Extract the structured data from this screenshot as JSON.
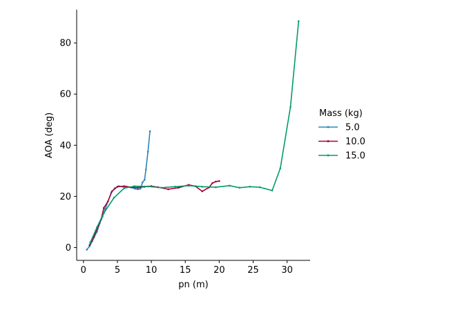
{
  "chart_data": {
    "type": "line",
    "title": "",
    "xlabel": "pn (m)",
    "ylabel": "AOA (deg)",
    "xlim": [
      -1,
      33.4
    ],
    "ylim": [
      -5,
      93
    ],
    "xticks": [
      0,
      5,
      10,
      15,
      20,
      25,
      30
    ],
    "yticks": [
      0,
      20,
      40,
      60,
      80
    ],
    "grid": false,
    "legend": {
      "title": "Mass (kg)",
      "placement": "right"
    },
    "series": [
      {
        "name": "5.0",
        "color": "#2b83ba",
        "points": [
          [
            0.5,
            -0.8
          ],
          [
            0.9,
            0.5
          ],
          [
            1.3,
            2.5
          ],
          [
            1.6,
            4.2
          ],
          [
            2.0,
            6.2
          ],
          [
            2.4,
            9.5
          ],
          [
            2.8,
            12.0
          ],
          [
            3.2,
            15.0
          ],
          [
            3.6,
            18.0
          ],
          [
            4.1,
            21.5
          ],
          [
            4.6,
            23.2
          ],
          [
            5.2,
            24.0
          ],
          [
            5.8,
            23.8
          ],
          [
            6.4,
            23.7
          ],
          [
            7.0,
            23.5
          ],
          [
            7.6,
            23.0
          ],
          [
            8.0,
            22.8
          ],
          [
            8.4,
            23.0
          ],
          [
            8.7,
            25.5
          ],
          [
            9.0,
            26.5
          ],
          [
            9.2,
            30.5
          ],
          [
            9.5,
            37.5
          ],
          [
            9.8,
            45.5
          ]
        ]
      },
      {
        "name": "10.0",
        "color": "#a50034",
        "points": [
          [
            0.9,
            1.0
          ],
          [
            1.5,
            4.0
          ],
          [
            2.2,
            8.5
          ],
          [
            2.6,
            11.0
          ],
          [
            3.0,
            15.5
          ],
          [
            3.6,
            18.0
          ],
          [
            4.2,
            22.0
          ],
          [
            5.0,
            23.8
          ],
          [
            6.0,
            24.0
          ],
          [
            7.0,
            23.6
          ],
          [
            8.0,
            23.4
          ],
          [
            9.0,
            23.8
          ],
          [
            10.0,
            24.0
          ],
          [
            11.0,
            23.6
          ],
          [
            12.5,
            22.8
          ],
          [
            14.0,
            23.4
          ],
          [
            15.5,
            24.5
          ],
          [
            16.5,
            24.0
          ],
          [
            17.5,
            22.0
          ],
          [
            18.5,
            23.5
          ],
          [
            19.0,
            25.2
          ],
          [
            19.5,
            25.8
          ],
          [
            20.0,
            26.0
          ]
        ]
      },
      {
        "name": "15.0",
        "color": "#009a6e",
        "points": [
          [
            1.0,
            2.0
          ],
          [
            2.0,
            8.0
          ],
          [
            3.0,
            13.5
          ],
          [
            4.5,
            19.5
          ],
          [
            6.0,
            23.2
          ],
          [
            7.5,
            24.0
          ],
          [
            9.5,
            23.9
          ],
          [
            11.5,
            23.4
          ],
          [
            13.5,
            23.8
          ],
          [
            15.5,
            24.2
          ],
          [
            17.5,
            23.8
          ],
          [
            19.5,
            23.6
          ],
          [
            21.5,
            24.2
          ],
          [
            23.0,
            23.4
          ],
          [
            24.5,
            23.8
          ],
          [
            26.0,
            23.6
          ],
          [
            27.8,
            22.3
          ],
          [
            29.0,
            31.0
          ],
          [
            30.5,
            55.0
          ],
          [
            31.7,
            88.5
          ]
        ]
      }
    ]
  }
}
